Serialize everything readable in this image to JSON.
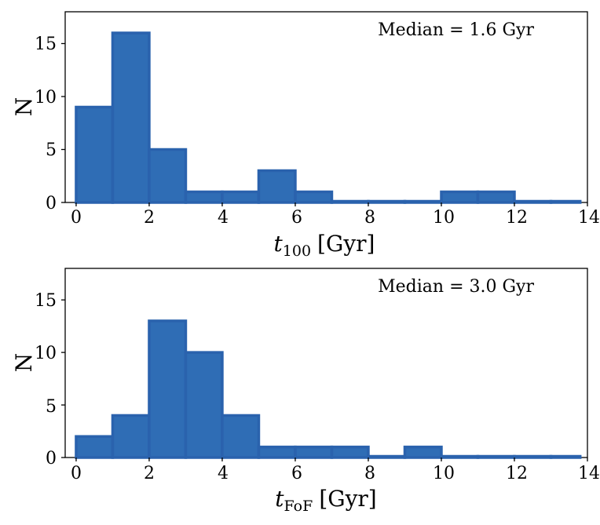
{
  "chart_data": [
    {
      "type": "bar",
      "bin_edges": [
        0,
        1,
        2,
        3,
        4,
        5,
        6,
        7,
        8,
        9,
        10,
        11,
        12,
        13,
        13.8
      ],
      "values": [
        9,
        16,
        5,
        1,
        1,
        3,
        1,
        0,
        0,
        0,
        1,
        1,
        0,
        0
      ],
      "xlabel_var": "t",
      "xlabel_sub": "100",
      "xlabel_unit": "[Gyr]",
      "ylabel": "N",
      "xlim": [
        -0.3,
        14
      ],
      "ylim": [
        0,
        18
      ],
      "xticks": [
        0,
        2,
        4,
        6,
        8,
        10,
        12,
        14
      ],
      "xtick_labels": [
        "0",
        "2",
        "4",
        "6",
        "8",
        "10",
        "12",
        "14"
      ],
      "yticks": [
        0,
        5,
        10,
        15
      ],
      "ytick_labels": [
        "0",
        "5",
        "10",
        "15"
      ],
      "annotation": "Median = 1.6 Gyr",
      "annotation_position": "top-right",
      "color": "#2f6db5",
      "edge_color": "#2a62ad"
    },
    {
      "type": "bar",
      "bin_edges": [
        0,
        1,
        2,
        3,
        4,
        5,
        6,
        7,
        8,
        9,
        10,
        11,
        12,
        13,
        13.8
      ],
      "values": [
        2,
        4,
        13,
        10,
        4,
        1,
        1,
        1,
        0,
        1,
        0,
        0,
        0,
        0
      ],
      "xlabel_var": "t",
      "xlabel_sub": "FoF",
      "xlabel_unit": "[Gyr]",
      "ylabel": "N",
      "xlim": [
        -0.3,
        14
      ],
      "ylim": [
        0,
        18
      ],
      "xticks": [
        0,
        2,
        4,
        6,
        8,
        10,
        12,
        14
      ],
      "xtick_labels": [
        "0",
        "2",
        "4",
        "6",
        "8",
        "10",
        "12",
        "14"
      ],
      "yticks": [
        0,
        5,
        10,
        15
      ],
      "ytick_labels": [
        "0",
        "5",
        "10",
        "15"
      ],
      "annotation": "Median = 3.0 Gyr",
      "annotation_position": "top-right",
      "color": "#2f6db5",
      "edge_color": "#2a62ad"
    }
  ]
}
